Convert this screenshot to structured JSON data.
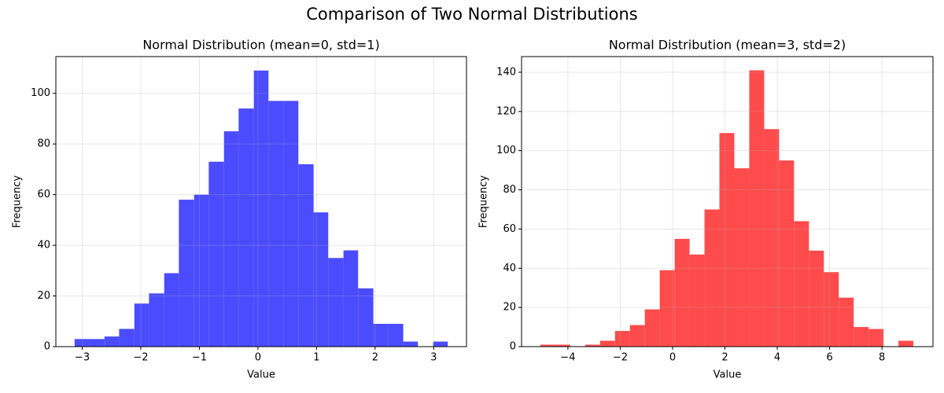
{
  "title": "Comparison of Two Normal Distributions",
  "chart_data": [
    {
      "type": "histogram",
      "title": "Normal Distribution (mean=0, std=1)",
      "x_label": "Value",
      "y_label": "Frequency",
      "color": "#4b4bff",
      "grid": true,
      "bins": [
        -3.13,
        -2.88,
        -2.62,
        -2.37,
        -2.11,
        -1.86,
        -1.6,
        -1.35,
        -1.09,
        -0.84,
        -0.58,
        -0.33,
        -0.07,
        0.18,
        0.44,
        0.69,
        0.95,
        1.2,
        1.46,
        1.71,
        1.97,
        2.22,
        2.48,
        2.73,
        2.99,
        3.24
      ],
      "values": [
        3,
        3,
        4,
        7,
        17,
        21,
        29,
        58,
        60,
        73,
        85,
        94,
        109,
        97,
        97,
        72,
        53,
        35,
        38,
        23,
        9,
        9,
        2,
        0,
        2
      ],
      "xlim": [
        -3.45,
        3.56
      ],
      "ylim": [
        0,
        114.5
      ],
      "xticks": [
        {
          "value": -3,
          "label": "−3"
        },
        {
          "value": -2,
          "label": "−2"
        },
        {
          "value": -1,
          "label": "−1"
        },
        0,
        1,
        2,
        3
      ],
      "yticks": [
        0,
        20,
        40,
        60,
        80,
        100
      ]
    },
    {
      "type": "histogram",
      "title": "Normal Distribution (mean=3, std=2)",
      "x_label": "Value",
      "y_label": "Frequency",
      "color": "#ff4b4b",
      "grid": true,
      "bins": [
        -5.05,
        -4.48,
        -3.91,
        -3.34,
        -2.77,
        -2.2,
        -1.63,
        -1.06,
        -0.49,
        0.08,
        0.65,
        1.22,
        1.79,
        2.36,
        2.93,
        3.5,
        4.07,
        4.64,
        5.21,
        5.78,
        6.35,
        6.92,
        7.49,
        8.06,
        8.63,
        9.2
      ],
      "values": [
        1,
        1,
        0,
        1,
        3,
        8,
        11,
        19,
        39,
        55,
        47,
        70,
        109,
        91,
        141,
        111,
        95,
        64,
        49,
        38,
        25,
        10,
        9,
        0,
        3
      ],
      "xlim": [
        -5.77,
        9.95
      ],
      "ylim": [
        0,
        148
      ],
      "xticks": [
        {
          "value": -4,
          "label": "−4"
        },
        {
          "value": -2,
          "label": "−2"
        },
        0,
        2,
        4,
        6,
        8
      ],
      "yticks": [
        0,
        20,
        40,
        60,
        80,
        100,
        120,
        140
      ]
    }
  ]
}
